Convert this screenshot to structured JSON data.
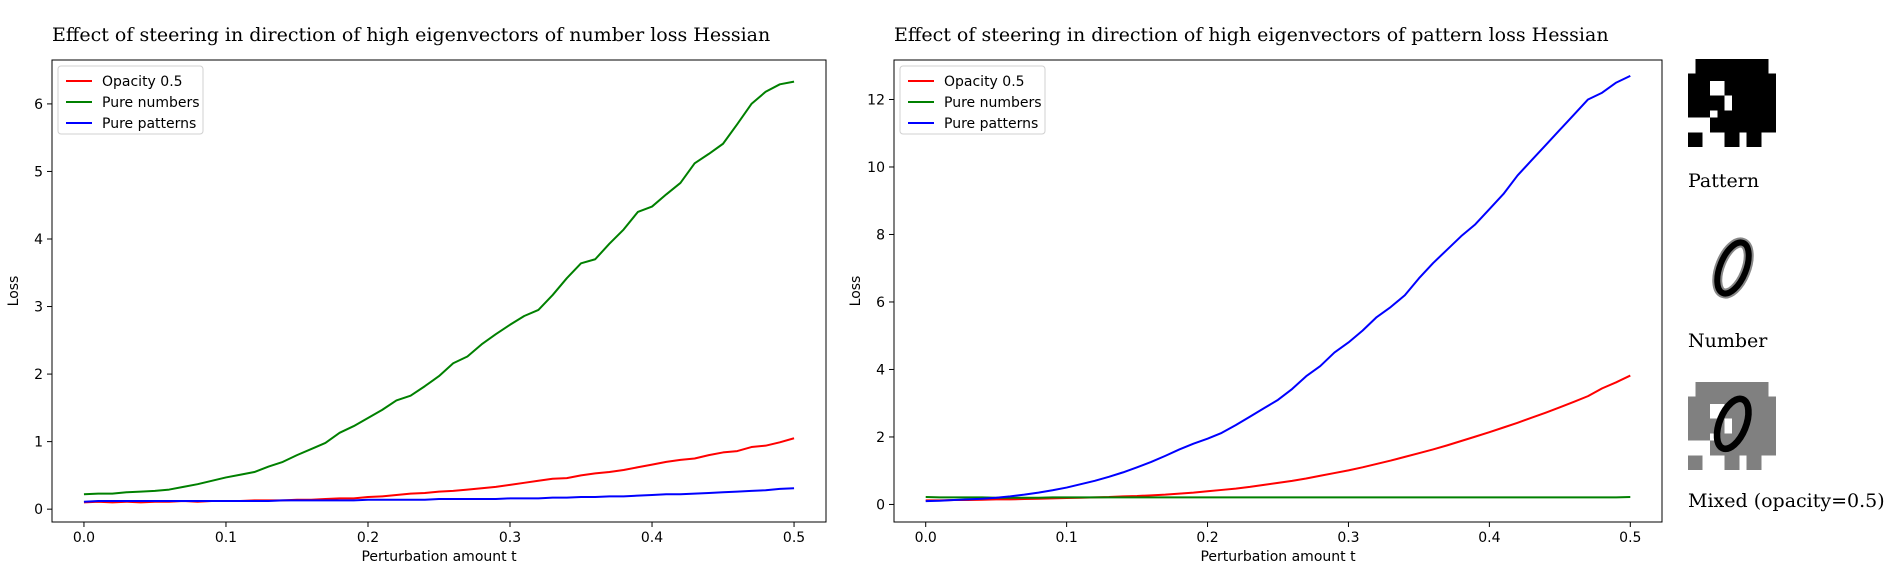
{
  "chart_data": [
    {
      "type": "line",
      "title": "Effect of steering in direction of high eigenvectors of number loss Hessian",
      "xlabel": "Perturbation amount t",
      "ylabel": "Loss",
      "xlim": [
        -0.0225,
        0.5225
      ],
      "ylim": [
        -0.19,
        6.65
      ],
      "xticks": [
        "0.0",
        "0.1",
        "0.2",
        "0.3",
        "0.4",
        "0.5"
      ],
      "yticks": [
        "0",
        "1",
        "2",
        "3",
        "4",
        "5",
        "6"
      ],
      "legend_position": "top-left",
      "x": [
        0.0,
        0.01,
        0.02,
        0.03,
        0.04,
        0.05,
        0.06,
        0.07,
        0.08,
        0.09,
        0.1,
        0.11,
        0.12,
        0.13,
        0.14,
        0.15,
        0.16,
        0.17,
        0.18,
        0.19,
        0.2,
        0.21,
        0.22,
        0.23,
        0.24,
        0.25,
        0.26,
        0.27,
        0.28,
        0.29,
        0.3,
        0.31,
        0.32,
        0.33,
        0.34,
        0.35,
        0.36,
        0.37,
        0.38,
        0.39,
        0.4,
        0.41,
        0.42,
        0.43,
        0.44,
        0.45,
        0.46,
        0.47,
        0.48,
        0.49,
        0.5
      ],
      "series": [
        {
          "name": "Opacity 0.5",
          "color": "#ff0000",
          "values": [
            0.1,
            0.11,
            0.1,
            0.11,
            0.1,
            0.11,
            0.11,
            0.12,
            0.11,
            0.12,
            0.12,
            0.12,
            0.13,
            0.13,
            0.13,
            0.14,
            0.14,
            0.15,
            0.16,
            0.16,
            0.18,
            0.19,
            0.21,
            0.23,
            0.24,
            0.26,
            0.27,
            0.29,
            0.31,
            0.33,
            0.36,
            0.39,
            0.42,
            0.45,
            0.46,
            0.5,
            0.53,
            0.55,
            0.58,
            0.62,
            0.66,
            0.7,
            0.73,
            0.75,
            0.8,
            0.84,
            0.86,
            0.92,
            0.94,
            0.99,
            1.05
          ]
        },
        {
          "name": "Pure numbers",
          "color": "#008000",
          "values": [
            0.22,
            0.23,
            0.23,
            0.25,
            0.26,
            0.27,
            0.29,
            0.33,
            0.37,
            0.42,
            0.47,
            0.51,
            0.55,
            0.63,
            0.7,
            0.8,
            0.89,
            0.98,
            1.13,
            1.23,
            1.35,
            1.47,
            1.61,
            1.68,
            1.82,
            1.97,
            2.16,
            2.26,
            2.44,
            2.59,
            2.73,
            2.86,
            2.95,
            3.17,
            3.42,
            3.64,
            3.7,
            3.93,
            4.14,
            4.4,
            4.48,
            4.66,
            4.83,
            5.12,
            5.26,
            5.41,
            5.7,
            6.0,
            6.18,
            6.29,
            6.33
          ]
        },
        {
          "name": "Pure patterns",
          "color": "#0000ff",
          "values": [
            0.11,
            0.12,
            0.12,
            0.12,
            0.12,
            0.12,
            0.12,
            0.12,
            0.12,
            0.12,
            0.12,
            0.12,
            0.12,
            0.12,
            0.13,
            0.13,
            0.13,
            0.13,
            0.13,
            0.13,
            0.14,
            0.14,
            0.14,
            0.14,
            0.14,
            0.15,
            0.15,
            0.15,
            0.15,
            0.15,
            0.16,
            0.16,
            0.16,
            0.17,
            0.17,
            0.18,
            0.18,
            0.19,
            0.19,
            0.2,
            0.21,
            0.22,
            0.22,
            0.23,
            0.24,
            0.25,
            0.26,
            0.27,
            0.28,
            0.3,
            0.31
          ]
        }
      ]
    },
    {
      "type": "line",
      "title": "Effect of steering in direction of high eigenvectors of pattern loss Hessian",
      "xlabel": "Perturbation amount t",
      "ylabel": "Loss",
      "xlim": [
        -0.0225,
        0.5225
      ],
      "ylim": [
        -0.52,
        13.17
      ],
      "xticks": [
        "0.0",
        "0.1",
        "0.2",
        "0.3",
        "0.4",
        "0.5"
      ],
      "yticks": [
        "0",
        "2",
        "4",
        "6",
        "8",
        "10",
        "12"
      ],
      "legend_position": "top-left",
      "x": [
        0.0,
        0.01,
        0.02,
        0.03,
        0.04,
        0.05,
        0.06,
        0.07,
        0.08,
        0.09,
        0.1,
        0.11,
        0.12,
        0.13,
        0.14,
        0.15,
        0.16,
        0.17,
        0.18,
        0.19,
        0.2,
        0.21,
        0.22,
        0.23,
        0.24,
        0.25,
        0.26,
        0.27,
        0.28,
        0.29,
        0.3,
        0.31,
        0.32,
        0.33,
        0.34,
        0.35,
        0.36,
        0.37,
        0.38,
        0.39,
        0.4,
        0.41,
        0.42,
        0.43,
        0.44,
        0.45,
        0.46,
        0.47,
        0.48,
        0.49,
        0.5
      ],
      "series": [
        {
          "name": "Opacity 0.5",
          "color": "#ff0000",
          "values": [
            0.12,
            0.12,
            0.13,
            0.13,
            0.14,
            0.15,
            0.15,
            0.16,
            0.17,
            0.18,
            0.19,
            0.2,
            0.21,
            0.22,
            0.24,
            0.25,
            0.27,
            0.29,
            0.32,
            0.35,
            0.39,
            0.43,
            0.47,
            0.52,
            0.58,
            0.64,
            0.7,
            0.77,
            0.85,
            0.93,
            1.01,
            1.1,
            1.2,
            1.3,
            1.41,
            1.52,
            1.63,
            1.75,
            1.88,
            2.01,
            2.14,
            2.28,
            2.42,
            2.57,
            2.72,
            2.88,
            3.04,
            3.21,
            3.44,
            3.62,
            3.82
          ]
        },
        {
          "name": "Pure numbers",
          "color": "#008000",
          "values": [
            0.22,
            0.21,
            0.21,
            0.21,
            0.21,
            0.2,
            0.2,
            0.2,
            0.2,
            0.21,
            0.21,
            0.21,
            0.21,
            0.21,
            0.21,
            0.21,
            0.21,
            0.21,
            0.21,
            0.21,
            0.21,
            0.21,
            0.21,
            0.21,
            0.21,
            0.21,
            0.21,
            0.21,
            0.21,
            0.21,
            0.21,
            0.21,
            0.21,
            0.21,
            0.21,
            0.21,
            0.21,
            0.21,
            0.21,
            0.21,
            0.21,
            0.21,
            0.21,
            0.21,
            0.21,
            0.21,
            0.21,
            0.21,
            0.21,
            0.21,
            0.22
          ]
        },
        {
          "name": "Pure patterns",
          "color": "#0000ff",
          "values": [
            0.1,
            0.11,
            0.13,
            0.15,
            0.17,
            0.2,
            0.24,
            0.29,
            0.35,
            0.42,
            0.5,
            0.6,
            0.7,
            0.82,
            0.95,
            1.1,
            1.26,
            1.44,
            1.63,
            1.8,
            1.95,
            2.12,
            2.35,
            2.6,
            2.85,
            3.1,
            3.42,
            3.8,
            4.1,
            4.5,
            4.8,
            5.15,
            5.55,
            5.85,
            6.2,
            6.7,
            7.15,
            7.55,
            7.95,
            8.3,
            8.75,
            9.2,
            9.75,
            10.2,
            10.65,
            11.1,
            11.55,
            12.0,
            12.2,
            12.5,
            12.7
          ]
        }
      ]
    }
  ],
  "side_panel": {
    "labels": [
      "Pattern",
      "Number",
      "Mixed (opacity=0.5)"
    ]
  }
}
